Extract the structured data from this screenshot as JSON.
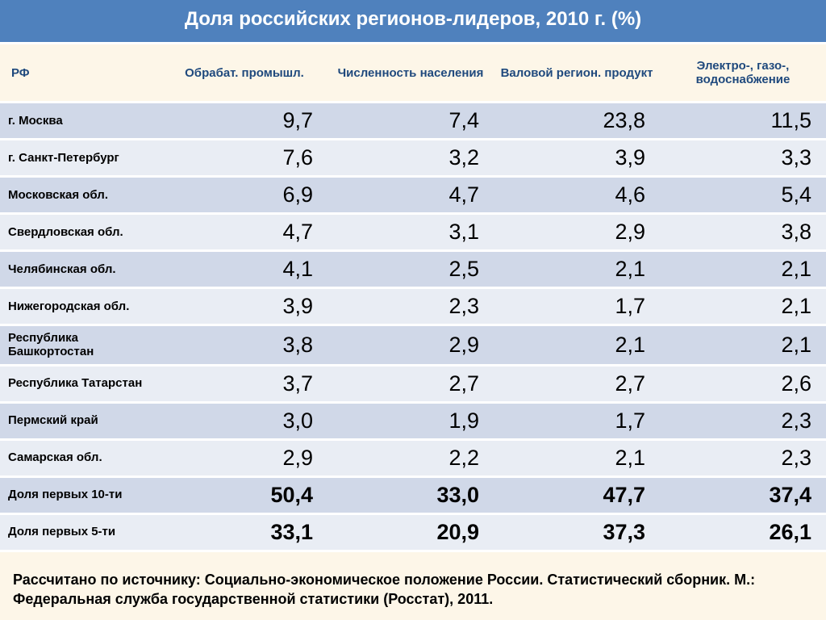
{
  "title": "Доля российских регионов-лидеров, 2010 г. (%)",
  "columns": [
    "РФ",
    "Обрабат. промышл.",
    "Численность населения",
    "Валовой регион. продукт",
    "Электро-, газо-, водоснабжение"
  ],
  "col_widths": [
    "200px",
    "206px",
    "206px",
    "206px",
    "206px"
  ],
  "rows": [
    {
      "label": "г. Москва",
      "values": [
        "9,7",
        "7,4",
        "23,8",
        "11,5"
      ],
      "band": "even"
    },
    {
      "label": "г. Санкт-Петербург",
      "values": [
        "7,6",
        "3,2",
        "3,9",
        "3,3"
      ],
      "band": "odd"
    },
    {
      "label": "Московская обл.",
      "values": [
        "6,9",
        "4,7",
        "4,6",
        "5,4"
      ],
      "band": "even"
    },
    {
      "label": "Свердловская обл.",
      "values": [
        "4,7",
        "3,1",
        "2,9",
        "3,8"
      ],
      "band": "odd"
    },
    {
      "label": "Челябинская обл.",
      "values": [
        "4,1",
        "2,5",
        "2,1",
        "2,1"
      ],
      "band": "even"
    },
    {
      "label": "Нижегородская обл.",
      "values": [
        "3,9",
        "2,3",
        "1,7",
        "2,1"
      ],
      "band": "odd"
    },
    {
      "label": "Республика Башкортостан",
      "values": [
        "3,8",
        "2,9",
        "2,1",
        "2,1"
      ],
      "band": "even"
    },
    {
      "label": "Республика Татарстан",
      "values": [
        "3,7",
        "2,7",
        "2,7",
        "2,6"
      ],
      "band": "odd"
    },
    {
      "label": "Пермский край",
      "values": [
        "3,0",
        "1,9",
        "1,7",
        "2,3"
      ],
      "band": "even"
    },
    {
      "label": "Самарская обл.",
      "values": [
        "2,9",
        "2,2",
        "2,1",
        "2,3"
      ],
      "band": "odd"
    },
    {
      "label": "Доля первых 10-ти",
      "values": [
        "50,4",
        "33,0",
        "47,7",
        "37,4"
      ],
      "band": "even",
      "bold": true
    },
    {
      "label": "Доля первых 5-ти",
      "values": [
        "33,1",
        "20,9",
        "37,3",
        "26,1"
      ],
      "band": "odd",
      "bold": true
    }
  ],
  "footnote": "Рассчитано по источнику: Социально-экономическое положение России. Статистический сборник. М.: Федеральная служба государственной статистики (Росстат), 2011.",
  "style": {
    "title_bg": "#4f81bd",
    "page_bg": "#fdf6e8",
    "band_even": "#d0d8e8",
    "band_odd": "#e9edf4",
    "header_text": "#1f497d",
    "cell_fontsize": 27,
    "label_fontsize": 15,
    "title_fontsize": 24,
    "footnote_fontsize": 18
  }
}
